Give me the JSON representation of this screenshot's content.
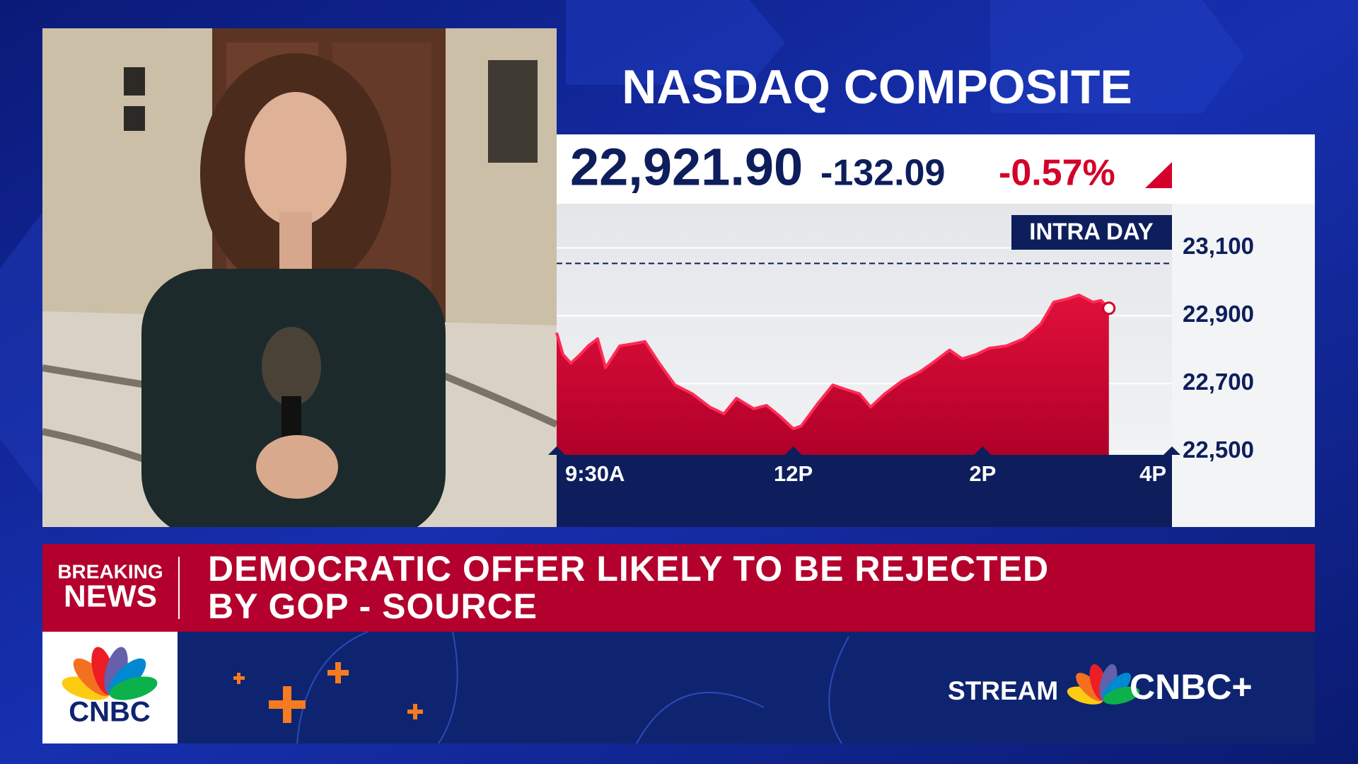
{
  "chart_data": {
    "type": "line",
    "title": "NASDAQ COMPOSITE",
    "quote": {
      "price": "22,921.90",
      "change": "-132.09",
      "percent": "-0.57%"
    },
    "period_label": "INTRA DAY",
    "x": [
      570,
      574,
      579,
      585,
      590,
      596,
      601,
      610,
      618,
      626,
      635,
      645,
      656,
      667,
      676,
      684,
      695,
      703,
      711,
      720,
      725,
      736,
      745,
      753,
      762,
      769,
      778,
      789,
      800,
      808,
      819,
      827,
      836,
      844,
      855,
      866,
      877,
      885,
      894,
      901,
      910,
      915,
      920
    ],
    "values": [
      22850,
      22786,
      22760,
      22786,
      22811,
      22832,
      22747,
      22811,
      22817,
      22824,
      22760,
      22696,
      22670,
      22631,
      22611,
      22657,
      22626,
      22636,
      22606,
      22567,
      22575,
      22644,
      22696,
      22683,
      22670,
      22631,
      22670,
      22708,
      22734,
      22760,
      22799,
      22773,
      22786,
      22804,
      22811,
      22832,
      22876,
      22940,
      22950,
      22961,
      22940,
      22945,
      22921.9
    ],
    "color": "#d4002a",
    "reference_line": 23054,
    "xlim": [
      570,
      960
    ],
    "xticks": [
      {
        "value": 570,
        "label": "9:30A"
      },
      {
        "value": 720,
        "label": "12P"
      },
      {
        "value": 840,
        "label": "2P"
      },
      {
        "value": 960,
        "label": "4P"
      }
    ],
    "ylim": [
      22490,
      23230
    ],
    "yticks": [
      {
        "value": 22500,
        "label": "22,500"
      },
      {
        "value": 22700,
        "label": "22,700"
      },
      {
        "value": 22900,
        "label": "22,900"
      },
      {
        "value": 23100,
        "label": "23,100"
      }
    ],
    "grid": true
  },
  "banner": {
    "label_lines": [
      "BREAKING",
      "NEWS"
    ],
    "headline_lines": [
      "DEMOCRATIC OFFER LIKELY TO BE REJECTED",
      "BY GOP - SOURCE"
    ]
  },
  "footer": {
    "network": "CNBC",
    "stream_label": "STREAM",
    "stream_brand": "CNBC+"
  }
}
